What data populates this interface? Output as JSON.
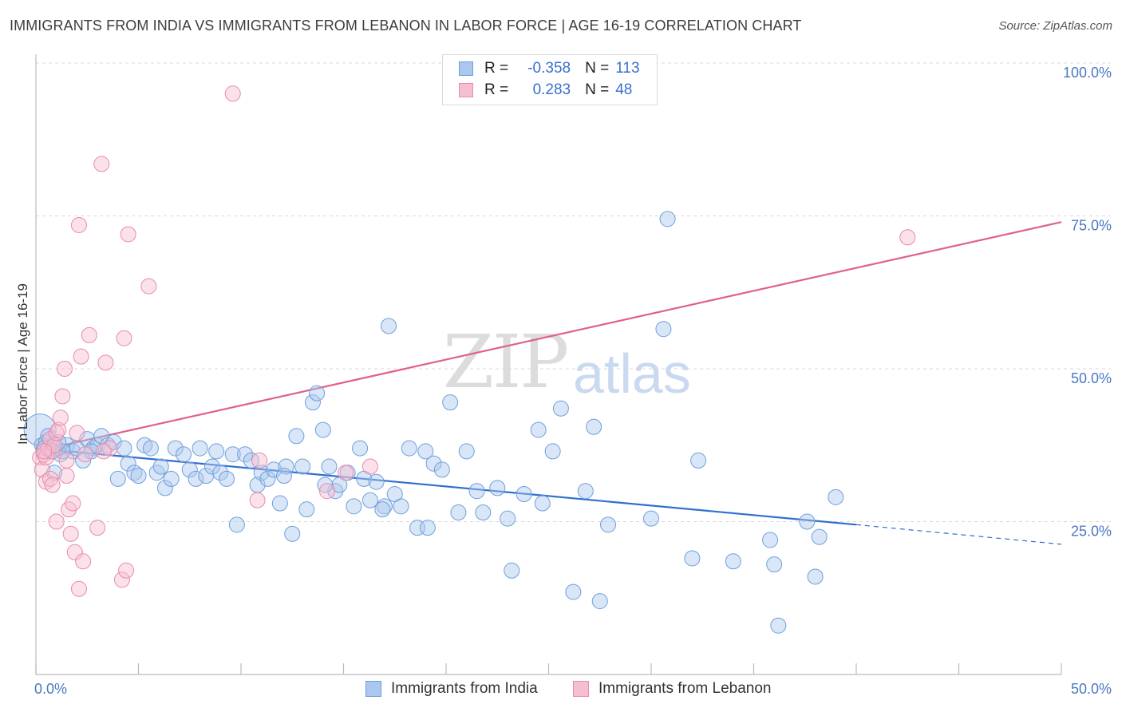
{
  "title": "IMMIGRANTS FROM INDIA VS IMMIGRANTS FROM LEBANON IN LABOR FORCE | AGE 16-19 CORRELATION CHART",
  "source": "Source: ZipAtlas.com",
  "watermark": {
    "zip": "ZIP",
    "atlas": "atlas"
  },
  "legend_top": {
    "rows": [
      {
        "r_label": "R =",
        "r_value": "-0.358",
        "n_label": "N =",
        "n_value": "113"
      },
      {
        "r_label": "R =",
        "r_value": "0.283",
        "n_label": "N =",
        "n_value": "48"
      }
    ]
  },
  "legend_bottom": {
    "india": "Immigrants from India",
    "lebanon": "Immigrants from Lebanon"
  },
  "colors": {
    "india_fill": "#aac8ee",
    "india_stroke": "#6e9fdc",
    "india_line": "#2f6fd0",
    "lebanon_fill": "#f6bfd0",
    "lebanon_stroke": "#e88aaa",
    "lebanon_line": "#e0608c",
    "tick_label": "#4a78c2",
    "grid": "#d8d8d8"
  },
  "chart_data": {
    "type": "scatter",
    "title": "IMMIGRANTS FROM INDIA VS IMMIGRANTS FROM LEBANON IN LABOR FORCE | AGE 16-19 CORRELATION CHART",
    "xlabel": "",
    "ylabel": "In Labor Force | Age 16-19",
    "xlim": [
      0,
      50
    ],
    "ylim": [
      0,
      100
    ],
    "x_tick_labels": [
      "0.0%",
      "50.0%"
    ],
    "y_tick_labels": [
      "100.0%",
      "75.0%",
      "50.0%",
      "25.0%"
    ],
    "y_ticks": [
      100,
      75,
      50,
      25
    ],
    "x_minor_ticks": [
      0,
      5,
      10,
      15,
      20,
      25,
      30,
      35,
      40,
      45,
      50
    ],
    "grid": true,
    "legend_position": "top-center",
    "series": [
      {
        "name": "Immigrants from India",
        "points": [
          [
            0.2,
            40.0
          ],
          [
            0.3,
            37.5
          ],
          [
            0.5,
            38.0
          ],
          [
            0.7,
            36.5
          ],
          [
            1.0,
            37.0
          ],
          [
            1.2,
            36.0
          ],
          [
            0.9,
            33.0
          ],
          [
            1.5,
            37.5
          ],
          [
            1.8,
            36.5
          ],
          [
            2.0,
            37.0
          ],
          [
            2.3,
            35.0
          ],
          [
            2.5,
            38.5
          ],
          [
            2.8,
            37.0
          ],
          [
            3.0,
            37.5
          ],
          [
            3.2,
            39.0
          ],
          [
            3.5,
            37.5
          ],
          [
            3.8,
            38.0
          ],
          [
            4.0,
            32.0
          ],
          [
            4.5,
            34.5
          ],
          [
            4.8,
            33.0
          ],
          [
            5.0,
            32.5
          ],
          [
            5.3,
            37.5
          ],
          [
            5.6,
            37.0
          ],
          [
            5.9,
            33.0
          ],
          [
            6.1,
            34.0
          ],
          [
            6.3,
            30.5
          ],
          [
            6.8,
            37.0
          ],
          [
            7.2,
            36.0
          ],
          [
            7.5,
            33.5
          ],
          [
            7.8,
            32.0
          ],
          [
            8.0,
            37.0
          ],
          [
            8.3,
            32.5
          ],
          [
            8.6,
            34.0
          ],
          [
            9.0,
            33.0
          ],
          [
            9.3,
            32.0
          ],
          [
            9.6,
            36.0
          ],
          [
            9.8,
            24.5
          ],
          [
            10.2,
            36.0
          ],
          [
            10.5,
            35.0
          ],
          [
            10.8,
            31.0
          ],
          [
            11.0,
            33.0
          ],
          [
            11.3,
            32.0
          ],
          [
            11.6,
            33.5
          ],
          [
            11.9,
            28.0
          ],
          [
            12.2,
            34.0
          ],
          [
            12.5,
            23.0
          ],
          [
            12.7,
            39.0
          ],
          [
            13.0,
            34.0
          ],
          [
            13.2,
            27.0
          ],
          [
            13.5,
            44.5
          ],
          [
            13.7,
            46.0
          ],
          [
            14.0,
            40.0
          ],
          [
            14.3,
            34.0
          ],
          [
            14.6,
            30.0
          ],
          [
            14.8,
            31.0
          ],
          [
            15.2,
            33.0
          ],
          [
            15.5,
            27.5
          ],
          [
            15.8,
            37.0
          ],
          [
            16.0,
            32.0
          ],
          [
            16.3,
            28.5
          ],
          [
            16.6,
            31.5
          ],
          [
            17.0,
            27.5
          ],
          [
            17.5,
            29.5
          ],
          [
            17.2,
            57.0
          ],
          [
            17.8,
            27.5
          ],
          [
            18.2,
            37.0
          ],
          [
            18.6,
            24.0
          ],
          [
            19.0,
            36.5
          ],
          [
            19.4,
            34.5
          ],
          [
            19.8,
            33.5
          ],
          [
            20.2,
            44.5
          ],
          [
            20.6,
            26.5
          ],
          [
            21.0,
            36.5
          ],
          [
            21.5,
            30.0
          ],
          [
            21.8,
            26.5
          ],
          [
            22.5,
            30.5
          ],
          [
            23.0,
            25.5
          ],
          [
            23.2,
            17.0
          ],
          [
            23.8,
            29.5
          ],
          [
            24.5,
            40.0
          ],
          [
            24.7,
            28.0
          ],
          [
            25.2,
            36.5
          ],
          [
            25.6,
            43.5
          ],
          [
            26.2,
            13.5
          ],
          [
            26.8,
            30.0
          ],
          [
            27.2,
            40.5
          ],
          [
            27.5,
            12.0
          ],
          [
            27.9,
            24.5
          ],
          [
            30.0,
            25.5
          ],
          [
            30.6,
            56.5
          ],
          [
            30.8,
            74.5
          ],
          [
            32.0,
            19.0
          ],
          [
            32.3,
            35.0
          ],
          [
            34.0,
            18.5
          ],
          [
            35.8,
            22.0
          ],
          [
            36.0,
            18.0
          ],
          [
            36.2,
            8.0
          ],
          [
            37.6,
            25.0
          ],
          [
            38.0,
            16.0
          ],
          [
            38.2,
            22.5
          ],
          [
            39.0,
            29.0
          ],
          [
            1.3,
            36.5
          ],
          [
            2.7,
            36.5
          ],
          [
            4.3,
            37.0
          ],
          [
            6.6,
            32.0
          ],
          [
            8.8,
            36.5
          ],
          [
            12.1,
            32.5
          ],
          [
            14.1,
            31.0
          ],
          [
            16.9,
            27.0
          ],
          [
            19.1,
            24.0
          ],
          [
            0.6,
            39.0
          ],
          [
            1.1,
            38.0
          ],
          [
            0.4,
            37.0
          ]
        ]
      },
      {
        "name": "Immigrants from Lebanon",
        "points": [
          [
            0.2,
            35.5
          ],
          [
            0.3,
            33.5
          ],
          [
            0.4,
            36.0
          ],
          [
            0.5,
            35.5
          ],
          [
            0.6,
            37.0
          ],
          [
            0.7,
            38.5
          ],
          [
            0.8,
            36.5
          ],
          [
            0.9,
            37.5
          ],
          [
            1.0,
            39.5
          ],
          [
            1.1,
            40.0
          ],
          [
            1.2,
            42.0
          ],
          [
            1.3,
            45.5
          ],
          [
            1.4,
            50.0
          ],
          [
            1.5,
            35.0
          ],
          [
            1.6,
            27.0
          ],
          [
            1.7,
            23.0
          ],
          [
            1.8,
            28.0
          ],
          [
            1.9,
            20.0
          ],
          [
            2.0,
            39.5
          ],
          [
            2.1,
            14.0
          ],
          [
            2.2,
            52.0
          ],
          [
            2.3,
            18.5
          ],
          [
            2.6,
            55.5
          ],
          [
            3.0,
            24.0
          ],
          [
            3.2,
            83.5
          ],
          [
            2.1,
            73.5
          ],
          [
            3.6,
            37.0
          ],
          [
            3.4,
            51.0
          ],
          [
            4.2,
            15.5
          ],
          [
            4.3,
            55.0
          ],
          [
            4.4,
            17.0
          ],
          [
            4.5,
            72.0
          ],
          [
            5.5,
            63.5
          ],
          [
            9.6,
            95.0
          ],
          [
            10.8,
            28.5
          ],
          [
            10.9,
            35.0
          ],
          [
            14.2,
            30.0
          ],
          [
            15.1,
            33.0
          ],
          [
            42.5,
            71.5
          ],
          [
            1.0,
            25.0
          ],
          [
            0.5,
            31.5
          ],
          [
            0.7,
            32.0
          ],
          [
            1.5,
            32.5
          ],
          [
            0.8,
            31.0
          ],
          [
            2.4,
            36.0
          ],
          [
            16.3,
            34.0
          ],
          [
            3.3,
            36.5
          ],
          [
            0.4,
            36.5
          ]
        ]
      }
    ],
    "trend_lines": [
      {
        "series": "Immigrants from India",
        "from": [
          0,
          37.0
        ],
        "to": [
          40,
          24.5
        ],
        "dashed_to": [
          50,
          21.3
        ]
      },
      {
        "series": "Immigrants from Lebanon",
        "from": [
          0,
          36.5
        ],
        "to": [
          50,
          74.0
        ]
      }
    ]
  }
}
